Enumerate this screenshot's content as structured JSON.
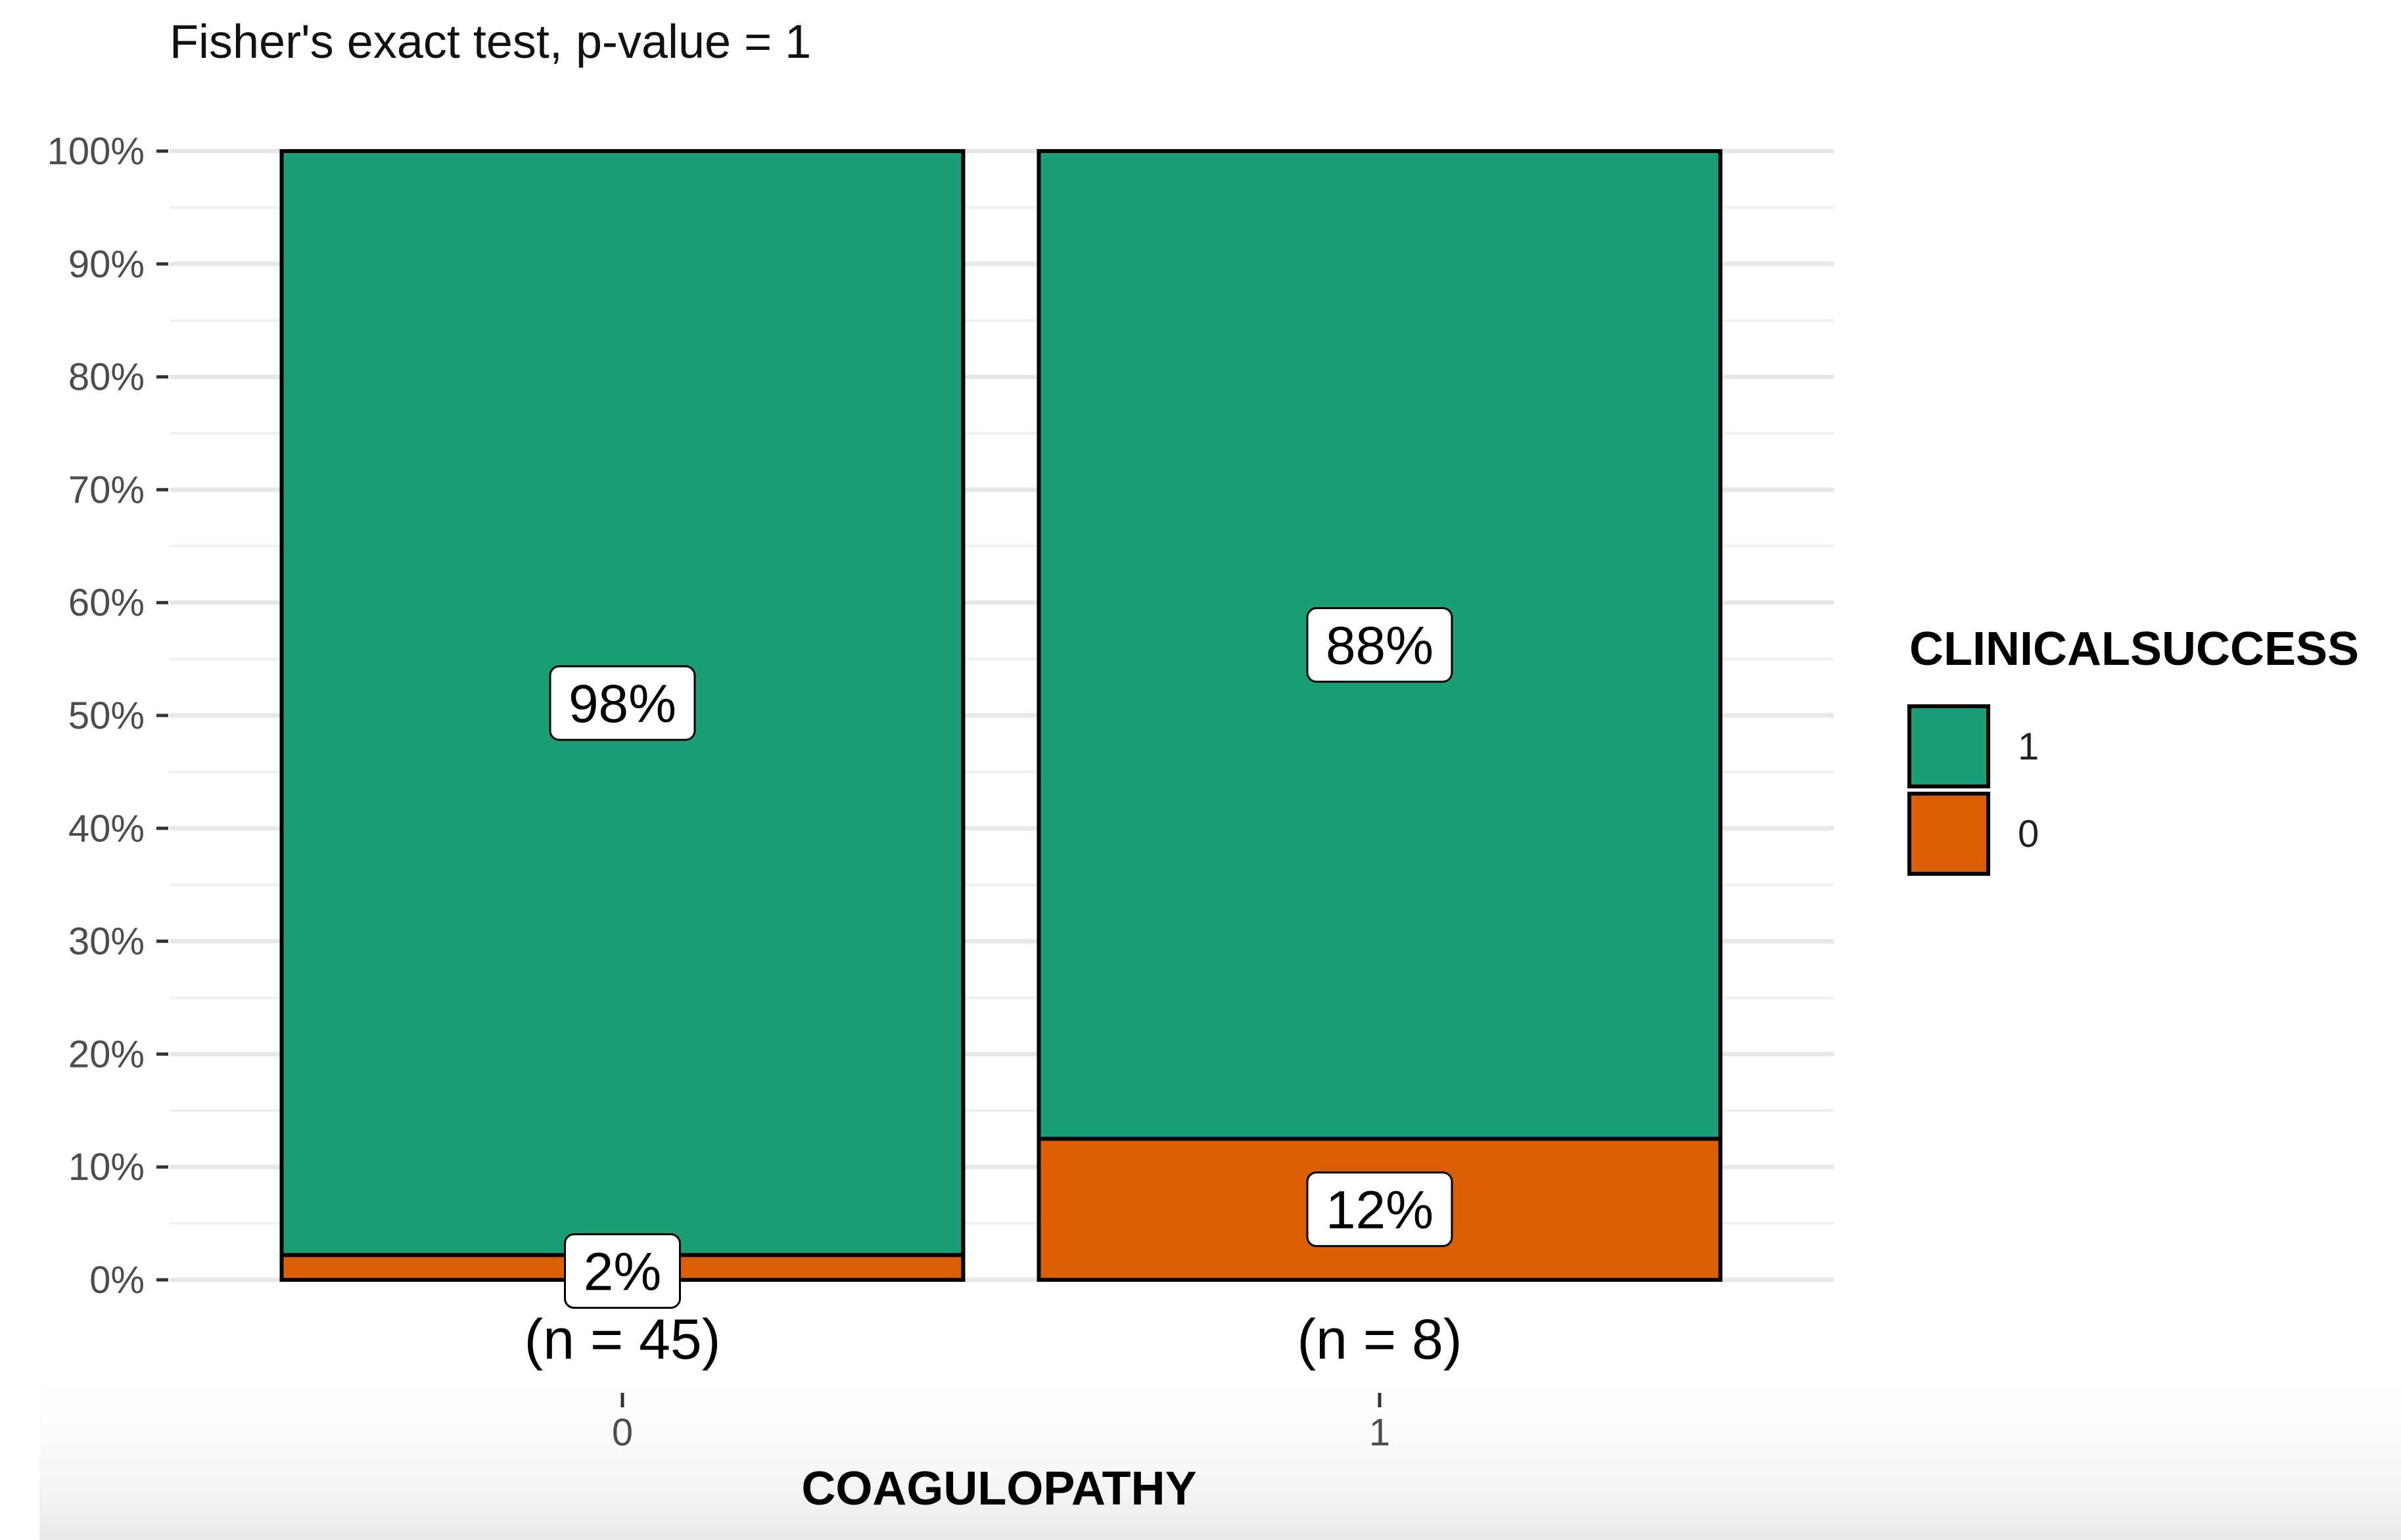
{
  "chart_data": {
    "type": "bar",
    "stacked": true,
    "subtitle": "Fisher's exact test, p-value = 1",
    "xlabel": "COAGULOPATHY",
    "ylabel": "",
    "categories": [
      "0",
      "1"
    ],
    "counts": [
      "(n = 45)",
      "(n = 8)"
    ],
    "ylim": [
      0,
      100
    ],
    "y_ticks": [
      0,
      10,
      20,
      30,
      40,
      50,
      60,
      70,
      80,
      90,
      100
    ],
    "y_tick_labels": [
      "0%",
      "10%",
      "20%",
      "30%",
      "40%",
      "50%",
      "60%",
      "70%",
      "80%",
      "90%",
      "100%"
    ],
    "series": [
      {
        "name": "0",
        "color": "#D95F02",
        "values": [
          2.2,
          12.5
        ],
        "labels": [
          "2%",
          "12%"
        ]
      },
      {
        "name": "1",
        "color": "#1B9E77",
        "values": [
          97.8,
          87.5
        ],
        "labels": [
          "98%",
          "88%"
        ]
      }
    ],
    "legend": {
      "title": "CLINICALSUCCESS",
      "position": "right",
      "entries": [
        {
          "label": "1",
          "color": "#1B9E77"
        },
        {
          "label": "0",
          "color": "#D95F02"
        }
      ]
    },
    "grid": true
  }
}
